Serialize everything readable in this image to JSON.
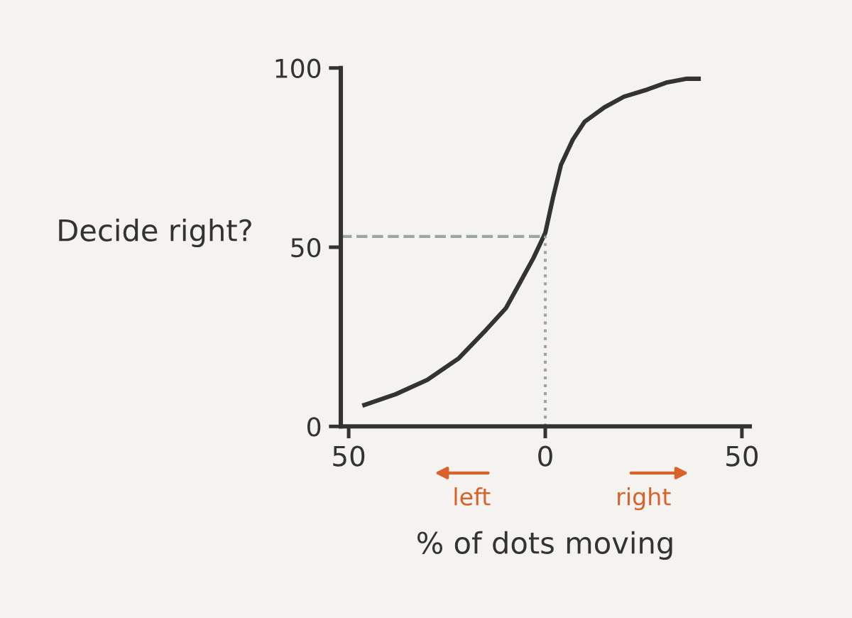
{
  "chart_data": {
    "type": "line",
    "xlabel": "% of dots moving",
    "ylabel": "Decide right?",
    "x": [
      -46,
      -38,
      -30,
      -22,
      -15,
      -10,
      -6,
      -3,
      0,
      2,
      4,
      7,
      10,
      15,
      20,
      26,
      31,
      36,
      39
    ],
    "series": [
      {
        "color": "#333333",
        "values": [
          6,
          9,
          13,
          19,
          27,
          33,
          41,
          47,
          54,
          64,
          73,
          80,
          85,
          89,
          92,
          94,
          96,
          97,
          97
        ]
      }
    ],
    "xlim": [
      -52,
      52
    ],
    "ylim": [
      0,
      100
    ],
    "xticks": [
      {
        "value": -50,
        "label": "50"
      },
      0,
      50
    ],
    "yticks": [
      0,
      50,
      100
    ],
    "ref_lines": [
      {
        "axis": "y",
        "value": 53,
        "color": "#9aa8a0",
        "line_style": "dashed"
      },
      {
        "axis": "x",
        "value": 0,
        "color": "#9aa8a0",
        "line_style": "dotted"
      }
    ],
    "annotations": [
      "left",
      "right"
    ],
    "grid": false,
    "legend": false,
    "marker": "none",
    "line_style": "solid"
  }
}
